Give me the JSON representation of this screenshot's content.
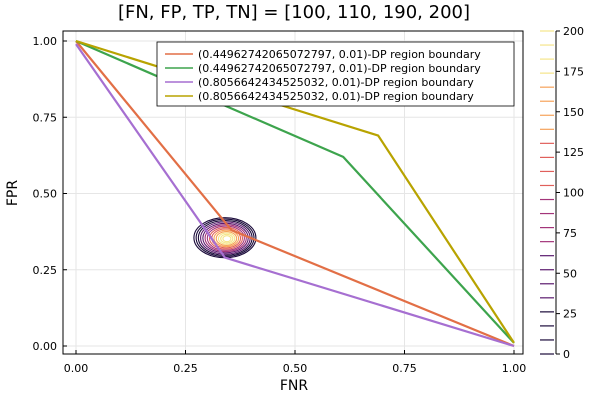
{
  "chart_data": {
    "type": "line",
    "title": "[FN, FP, TP, TN] = [100, 110, 190, 200]",
    "xlabel": "FNR",
    "ylabel": "FPR",
    "xlim": [
      0,
      1
    ],
    "ylim": [
      0,
      1
    ],
    "xticks": [
      "0.00",
      "0.25",
      "0.50",
      "0.75",
      "1.00"
    ],
    "yticks": [
      "0.00",
      "0.25",
      "0.50",
      "0.75",
      "1.00"
    ],
    "grid": true,
    "legend_position": "top-right",
    "series": [
      {
        "name": "(0.44962742065072797, 0.01)-DP region boundary",
        "color": "#e26f46",
        "x": [
          0,
          0.355,
          1
        ],
        "y": [
          1,
          0.38,
          0
        ]
      },
      {
        "name": "(0.44962742065072797, 0.01)-DP region boundary",
        "color": "#3da44d",
        "x": [
          0,
          0.61,
          1
        ],
        "y": [
          1,
          0.62,
          0.01
        ]
      },
      {
        "name": "(0.8056642434525032, 0.01)-DP region boundary",
        "color": "#a66fd1",
        "x": [
          0,
          0.34,
          1
        ],
        "y": [
          0.99,
          0.29,
          0
        ]
      },
      {
        "name": "(0.8056642434525032, 0.01)-DP region boundary",
        "color": "#b8a300",
        "x": [
          0,
          0.69,
          1
        ],
        "y": [
          1,
          0.69,
          0.01
        ]
      }
    ],
    "contour": {
      "type": "density-contour",
      "center": [
        0.34,
        0.355
      ],
      "colormap": [
        "#1a0a3a",
        "#5b1a6e",
        "#a3357a",
        "#e0605b",
        "#f6a25a",
        "#f5e58a"
      ]
    },
    "colorbar": {
      "range": [
        0,
        200
      ],
      "ticks": [
        "0",
        "25",
        "50",
        "75",
        "100",
        "125",
        "150",
        "175",
        "200"
      ]
    }
  }
}
